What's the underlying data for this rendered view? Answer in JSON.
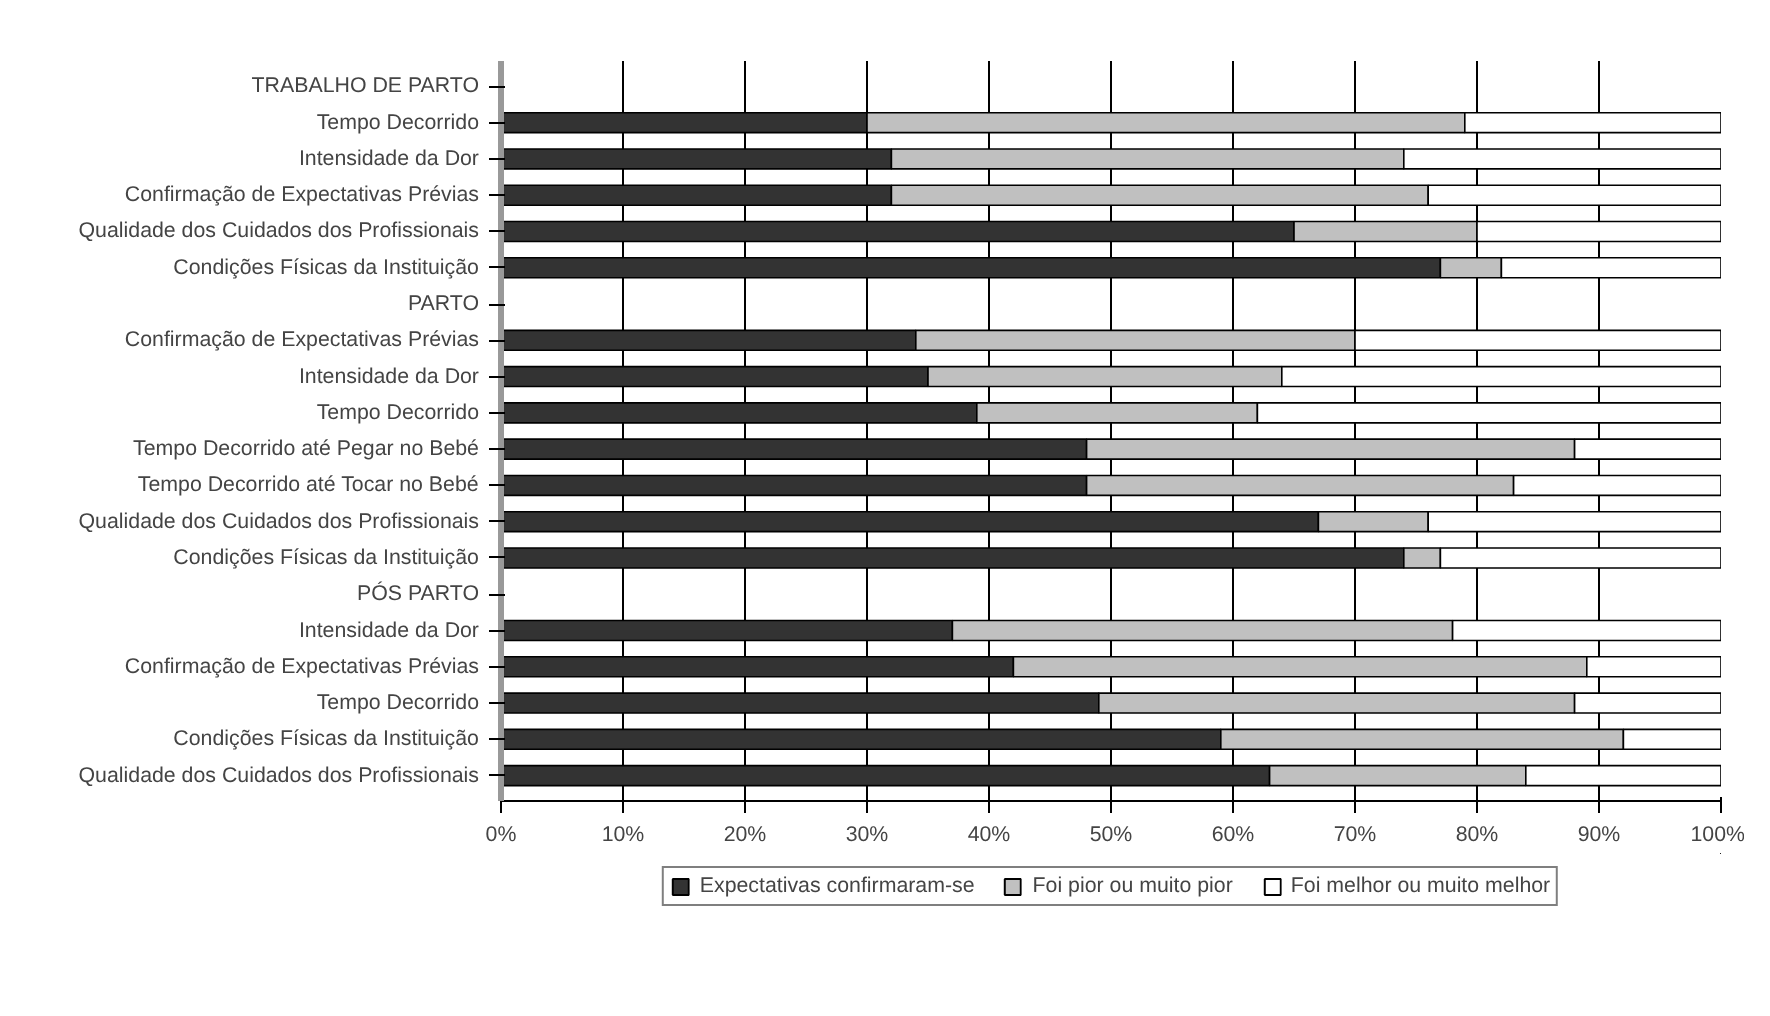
{
  "chart_data": {
    "type": "bar",
    "orientation": "horizontal",
    "stacked": true,
    "categories": [
      "TRABALHO DE PARTO",
      "Tempo Decorrido",
      "Intensidade da Dor",
      "Confirmação de Expectativas Prévias",
      "Qualidade dos Cuidados dos Profissionais",
      "Condições Físicas da Instituição",
      "PARTO",
      "Confirmação de Expectativas Prévias",
      "Intensidade da Dor",
      "Tempo Decorrido",
      "Tempo Decorrido até Pegar no Bebé",
      "Tempo Decorrido até Tocar no Bebé",
      "Qualidade dos Cuidados dos Profissionais",
      "Condições Físicas da Instituição",
      "PÓS PARTO",
      "Intensidade da Dor",
      "Confirmação de Expectativas Prévias",
      "Tempo Decorrido",
      "Condições Físicas da Instituição",
      "Qualidade dos Cuidados dos Profissionais"
    ],
    "series": [
      {
        "name": "Expectativas confirmaram-se",
        "color": "#333333",
        "values": [
          null,
          30,
          32,
          32,
          65,
          77,
          null,
          34,
          35,
          39,
          48,
          48,
          67,
          74,
          null,
          37,
          42,
          49,
          59,
          63
        ]
      },
      {
        "name": "Foi pior ou muito pior",
        "color": "#c0c0c0",
        "values": [
          null,
          49,
          42,
          44,
          15,
          5,
          null,
          36,
          29,
          23,
          40,
          35,
          9,
          3,
          null,
          41,
          47,
          39,
          33,
          21
        ]
      },
      {
        "name": "Foi melhor ou muito melhor",
        "color": "#ffffff",
        "values": [
          null,
          21,
          26,
          24,
          20,
          18,
          null,
          30,
          36,
          38,
          12,
          17,
          24,
          23,
          null,
          22,
          11,
          12,
          8,
          16
        ]
      }
    ],
    "xlim": [
      0,
      100
    ],
    "xticks": [
      {
        "value": 0,
        "label": "0%"
      },
      {
        "value": 10,
        "label": "10%"
      },
      {
        "value": 20,
        "label": "20%"
      },
      {
        "value": 30,
        "label": "30%"
      },
      {
        "value": 40,
        "label": "40%"
      },
      {
        "value": 50,
        "label": "50%"
      },
      {
        "value": 60,
        "label": "60%"
      },
      {
        "value": 70,
        "label": "70%"
      },
      {
        "value": 80,
        "label": "80%"
      },
      {
        "value": 90,
        "label": "90%"
      },
      {
        "value": 100,
        "label": "100%"
      }
    ],
    "grid": "x",
    "legend": "bottom"
  }
}
